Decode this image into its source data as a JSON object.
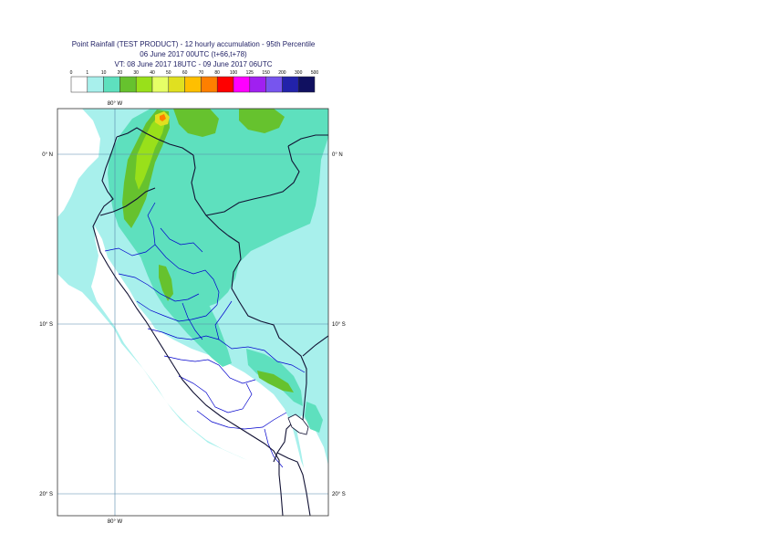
{
  "title": {
    "line1": "Point Rainfall (TEST PRODUCT) - 12 hourly accumulation - 95th Percentile",
    "line2": "06 June 2017 00UTC (t+66,t+78)",
    "line3": "VT: 08 June 2017 18UTC - 09 June 2017 06UTC"
  },
  "legend": {
    "thresholds": [
      "0",
      "1",
      "10",
      "20",
      "30",
      "40",
      "50",
      "60",
      "70",
      "80",
      "100",
      "125",
      "150",
      "200",
      "300",
      "500"
    ],
    "colors": [
      "#ffffff",
      "#a8f0ec",
      "#5ee0be",
      "#66c22e",
      "#99e01a",
      "#e6ff66",
      "#e0e020",
      "#ffbf00",
      "#ff7f00",
      "#ff0000",
      "#ff00ff",
      "#a020f0",
      "#7755ee",
      "#2222aa",
      "#101060"
    ]
  },
  "map": {
    "lon_labels": [
      "80° W",
      "80° W"
    ],
    "lat_labels_left": [
      "0° N",
      "10° S",
      "20° S"
    ],
    "lat_labels_right": [
      "0° N",
      "10° S",
      "20° S"
    ],
    "colors": {
      "ocean": "#a8f0ec",
      "light_rain": "#a8f0ec",
      "moderate_rain": "#5ee0be",
      "heavy_rain": "#66c22e",
      "very_heavy_rain": "#99e01a",
      "extreme_rain": "#e0e020",
      "peak_rain": "#ff7f00",
      "dry": "#ffffff",
      "coastline": "#111133",
      "internal_borders": "#0000cc",
      "gridline": "#5588aa"
    }
  }
}
